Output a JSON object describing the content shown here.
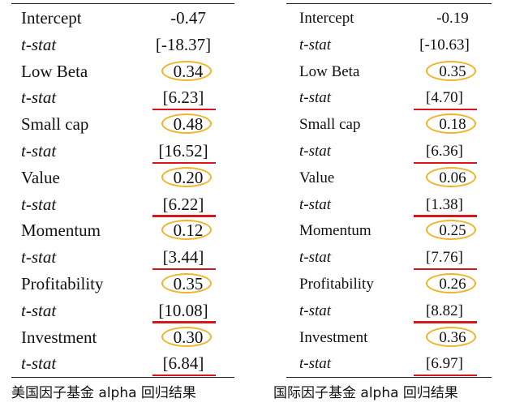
{
  "panels": [
    {
      "rows": [
        {
          "label": "Intercept",
          "value": "-0.47",
          "kind": "coef",
          "circled": false
        },
        {
          "label": "t-stat",
          "value": "[-18.37]",
          "kind": "tstat",
          "underlined": false
        },
        {
          "label": "Low Beta",
          "value": "0.34",
          "kind": "coef",
          "circled": true
        },
        {
          "label": "t-stat",
          "value": "[6.23]",
          "kind": "tstat",
          "underlined": true
        },
        {
          "label": "Small cap",
          "value": "0.48",
          "kind": "coef",
          "circled": true
        },
        {
          "label": "t-stat",
          "value": "[16.52]",
          "kind": "tstat",
          "underlined": true
        },
        {
          "label": "Value",
          "value": "0.20",
          "kind": "coef",
          "circled": true
        },
        {
          "label": "t-stat",
          "value": "[6.22]",
          "kind": "tstat",
          "underlined": true
        },
        {
          "label": "Momentum",
          "value": "0.12",
          "kind": "coef",
          "circled": true
        },
        {
          "label": "t-stat",
          "value": "[3.44]",
          "kind": "tstat",
          "underlined": true
        },
        {
          "label": "Profitability",
          "value": "0.35",
          "kind": "coef",
          "circled": true
        },
        {
          "label": "t-stat",
          "value": "[10.08]",
          "kind": "tstat",
          "underlined": true
        },
        {
          "label": "Investment",
          "value": "0.30",
          "kind": "coef",
          "circled": true
        },
        {
          "label": "t-stat",
          "value": "[6.84]",
          "kind": "tstat",
          "underlined": true
        }
      ],
      "caption": "美国因子基金 alpha 回归结果"
    },
    {
      "rows": [
        {
          "label": "Intercept",
          "value": "-0.19",
          "kind": "coef",
          "circled": false
        },
        {
          "label": "t-stat",
          "value": "[-10.63]",
          "kind": "tstat",
          "underlined": false
        },
        {
          "label": "Low Beta",
          "value": "0.35",
          "kind": "coef",
          "circled": true
        },
        {
          "label": "t-stat",
          "value": "[4.70]",
          "kind": "tstat",
          "underlined": true
        },
        {
          "label": "Small cap",
          "value": "0.18",
          "kind": "coef",
          "circled": true
        },
        {
          "label": "t-stat",
          "value": "[6.36]",
          "kind": "tstat",
          "underlined": true
        },
        {
          "label": "Value",
          "value": "0.06",
          "kind": "coef",
          "circled": true
        },
        {
          "label": "t-stat",
          "value": "[1.38]",
          "kind": "tstat",
          "underlined": true
        },
        {
          "label": "Momentum",
          "value": "0.25",
          "kind": "coef",
          "circled": true
        },
        {
          "label": "t-stat",
          "value": "[7.76]",
          "kind": "tstat",
          "underlined": true
        },
        {
          "label": "Profitability",
          "value": "0.26",
          "kind": "coef",
          "circled": true
        },
        {
          "label": "t-stat",
          "value": "[8.82]",
          "kind": "tstat",
          "underlined": true
        },
        {
          "label": "Investment",
          "value": "0.36",
          "kind": "coef",
          "circled": true
        },
        {
          "label": "t-stat",
          "value": "[6.97]",
          "kind": "tstat",
          "underlined": true
        }
      ],
      "caption": "国际因子基金 alpha  回归结果"
    }
  ],
  "colors": {
    "circle": "#f0b429",
    "underline": "#d8161c",
    "text": "#111111"
  }
}
